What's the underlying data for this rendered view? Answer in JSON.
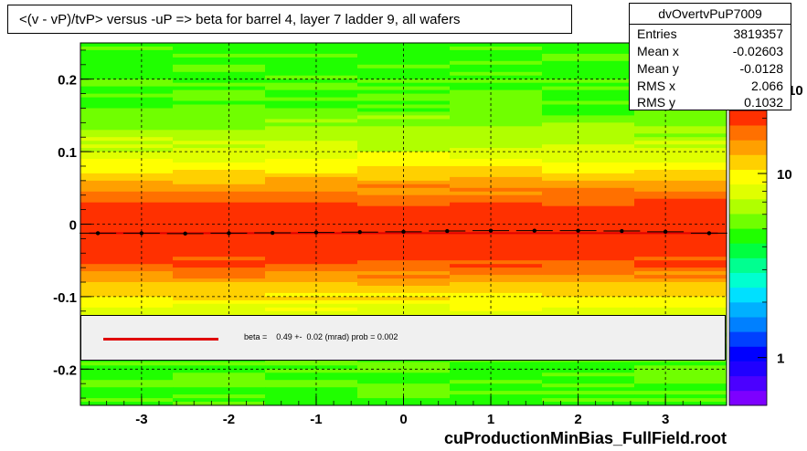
{
  "title": "<(v - vP)/tvP> versus  -uP => beta for barrel 4, layer 7 ladder 9, all wafers",
  "stats": {
    "name": "dvOvertvPuP7009",
    "rows": [
      {
        "label": "Entries",
        "value": "3819357"
      },
      {
        "label": "Mean x",
        "value": "-0.02603"
      },
      {
        "label": "Mean y",
        "value": "-0.0128"
      },
      {
        "label": "RMS x",
        "value": "2.066"
      },
      {
        "label": "RMS y",
        "value": "0.1032"
      }
    ]
  },
  "legend": {
    "text": "beta =    0.49 +-  0.02 (mrad) prob = 0.002",
    "line_color": "#e00000"
  },
  "footer": "cuProductionMinBias_FullField.root",
  "colors": {
    "palette": [
      "#7d00ff",
      "#4b00ff",
      "#2000ff",
      "#0000ff",
      "#0040ff",
      "#0080ff",
      "#00b0ff",
      "#00e0ff",
      "#00ffd0",
      "#00ff90",
      "#00ff40",
      "#20ff00",
      "#70ff00",
      "#b0ff00",
      "#e0ff00",
      "#ffff00",
      "#ffd000",
      "#ffa000",
      "#ff7000",
      "#ff3000"
    ],
    "profile": "#000000",
    "grid": "#000000"
  },
  "chart_data": {
    "type": "heatmap",
    "title": "<(v - vP)/tvP> versus  -uP => beta for barrel 4, layer 7 ladder 9, all wafers",
    "xlim": [
      -3.7,
      3.7
    ],
    "ylim": [
      -0.25,
      0.25
    ],
    "x_ticks": [
      -3,
      -2,
      -1,
      0,
      1,
      2,
      3
    ],
    "x_tick_labels": [
      "-3",
      "-2",
      "-1",
      "0",
      "1",
      "2",
      "3"
    ],
    "y_ticks": [
      -0.2,
      -0.1,
      0,
      0.1,
      0.2
    ],
    "y_tick_labels": [
      "-0.2",
      "-0.1",
      "0",
      "0.1",
      "0.2"
    ],
    "z_scale": "log",
    "z_ticks": [
      1,
      10
    ],
    "z_tick_labels": [
      "1",
      "10"
    ],
    "z_tick_partial": "10",
    "grid": true,
    "profile": {
      "x": [
        -3.5,
        -3.0,
        -2.5,
        -2.0,
        -1.5,
        -1.0,
        -0.5,
        0.0,
        0.5,
        1.0,
        1.5,
        2.0,
        2.5,
        3.0,
        3.5
      ],
      "y": [
        -0.0125,
        -0.0125,
        -0.013,
        -0.0125,
        -0.012,
        -0.0115,
        -0.011,
        -0.0105,
        -0.0095,
        -0.009,
        -0.009,
        -0.009,
        -0.0095,
        -0.0105,
        -0.0125
      ]
    },
    "fit": {
      "x": [
        -3.6,
        3.6
      ],
      "y": [
        -0.0125,
        -0.0125
      ]
    }
  }
}
